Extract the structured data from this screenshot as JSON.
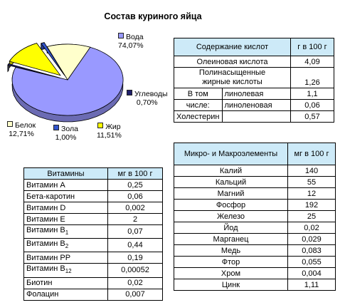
{
  "title": "Состав куриного яйца",
  "pie": {
    "slices": [
      {
        "name": "Вода",
        "value": 74.07,
        "pct": "74,07%",
        "color": "#9999ff"
      },
      {
        "name": "Углеводы",
        "value": 0.7,
        "pct": "0,70%",
        "color": "#1f1f6b"
      },
      {
        "name": "Жир",
        "value": 11.51,
        "pct": "11,51%",
        "color": "#ffff00"
      },
      {
        "name": "Зола",
        "value": 1.0,
        "pct": "1,00%",
        "color": "#3355cc"
      },
      {
        "name": "Белок",
        "value": 12.71,
        "pct": "12,71%",
        "color": "#ffffcc"
      }
    ]
  },
  "acids": {
    "h1": "Содержание кислот",
    "h2": "г в 100 г",
    "r1": {
      "name": "Олеиновая кислота",
      "value": "4,09"
    },
    "r2": {
      "name1": "Полинасыщенные",
      "name2": "жирные кислоты",
      "value": "1,26"
    },
    "r3": {
      "prefix": "В том",
      "name": "линолевая",
      "value": "1,1"
    },
    "r4": {
      "prefix": "числе:",
      "name": "линоленовая",
      "value": "0,06"
    },
    "r5": {
      "name": "Холестерин",
      "value": "0,57"
    }
  },
  "vitamins": {
    "h1": "Витамины",
    "h2": "мг в 100 г",
    "rows": [
      {
        "name": "Витамин А",
        "sub": "",
        "value": "0,25"
      },
      {
        "name": "Бета-каротин",
        "sub": "",
        "value": "0,06"
      },
      {
        "name": "Витамин D",
        "sub": "",
        "value": "0,002"
      },
      {
        "name": "Витамин Е",
        "sub": "",
        "value": "2"
      },
      {
        "name": "Витамин В",
        "sub": "1",
        "value": "0,07"
      },
      {
        "name": "Витамин В",
        "sub": "2",
        "value": "0,44"
      },
      {
        "name": "Витамин РР",
        "sub": "",
        "value": "0,19"
      },
      {
        "name": "Витамин В",
        "sub": "12",
        "value": "0,00052"
      },
      {
        "name": "Биотин",
        "sub": "",
        "value": "0,02"
      },
      {
        "name": "Фолацин",
        "sub": "",
        "value": "0,007"
      }
    ]
  },
  "minerals": {
    "h1": "Микро- и Макроэлементы",
    "h2": "мг в 100 г",
    "rows": [
      {
        "name": "Калий",
        "value": "140"
      },
      {
        "name": "Кальций",
        "value": "55"
      },
      {
        "name": "Магний",
        "value": "12"
      },
      {
        "name": "Фосфор",
        "value": "192"
      },
      {
        "name": "Железо",
        "value": "25"
      },
      {
        "name": "Йод",
        "value": "0,02"
      },
      {
        "name": "Марганец",
        "value": "0,029"
      },
      {
        "name": "Медь",
        "value": "0,083"
      },
      {
        "name": "Фтор",
        "value": "0,055"
      },
      {
        "name": "Хром",
        "value": "0,004"
      },
      {
        "name": "Цинк",
        "value": "1,11"
      }
    ]
  }
}
